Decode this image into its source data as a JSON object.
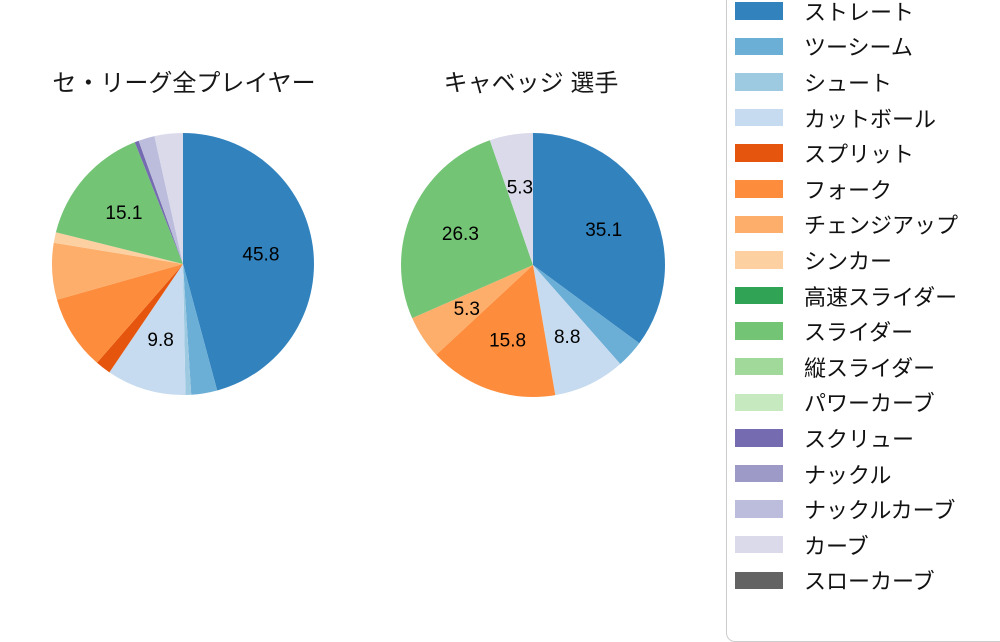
{
  "chart_data": [
    {
      "type": "pie",
      "title": "セ・リーグ全プレイヤー",
      "start_angle": "top",
      "direction": "clockwise",
      "unit": "percent",
      "pct_label_distance": 0.6,
      "slices": [
        {
          "name": "ストレート",
          "value": 45.8,
          "pct_label": "45.8",
          "color": "#3182bd"
        },
        {
          "name": "ツーシーム",
          "value": 3.2,
          "pct_label": null,
          "color": "#6baed6"
        },
        {
          "name": "シュート",
          "value": 0.7,
          "pct_label": null,
          "color": "#9ecae1"
        },
        {
          "name": "カットボール",
          "value": 9.8,
          "pct_label": "9.8",
          "color": "#c6dbef"
        },
        {
          "name": "スプリット",
          "value": 1.9,
          "pct_label": null,
          "color": "#e6550d"
        },
        {
          "name": "フォーク",
          "value": 9.2,
          "pct_label": null,
          "color": "#fd8d3c"
        },
        {
          "name": "チェンジアップ",
          "value": 7.0,
          "pct_label": null,
          "color": "#fdae6b"
        },
        {
          "name": "シンカー",
          "value": 1.3,
          "pct_label": null,
          "color": "#fdd0a2"
        },
        {
          "name": "スライダー",
          "value": 15.1,
          "pct_label": "15.1",
          "color": "#74c476"
        },
        {
          "name": "スクリュー",
          "value": 0.5,
          "pct_label": null,
          "color": "#756bb1"
        },
        {
          "name": "ナックルカーブ",
          "value": 2.0,
          "pct_label": null,
          "color": "#bcbddc"
        },
        {
          "name": "カーブ",
          "value": 3.5,
          "pct_label": null,
          "color": "#dadaeb"
        }
      ]
    },
    {
      "type": "pie",
      "title": "キャベッジ 選手",
      "start_angle": "top",
      "direction": "clockwise",
      "unit": "percent",
      "pct_label_distance": 0.6,
      "slices": [
        {
          "name": "ストレート",
          "value": 35.1,
          "pct_label": "35.1",
          "color": "#3182bd"
        },
        {
          "name": "ツーシーム",
          "value": 3.4,
          "pct_label": null,
          "color": "#6baed6"
        },
        {
          "name": "カットボール",
          "value": 8.8,
          "pct_label": "8.8",
          "color": "#c6dbef"
        },
        {
          "name": "フォーク",
          "value": 15.8,
          "pct_label": "15.8",
          "color": "#fd8d3c"
        },
        {
          "name": "チェンジアップ",
          "value": 5.3,
          "pct_label": "5.3",
          "color": "#fdae6b"
        },
        {
          "name": "スライダー",
          "value": 26.3,
          "pct_label": "26.3",
          "color": "#74c476"
        },
        {
          "name": "カーブ",
          "value": 5.3,
          "pct_label": "5.3",
          "color": "#dadaeb"
        }
      ]
    }
  ],
  "legend": {
    "position": "right",
    "items": [
      {
        "label": "ストレート",
        "color": "#3182bd"
      },
      {
        "label": "ツーシーム",
        "color": "#6baed6"
      },
      {
        "label": "シュート",
        "color": "#9ecae1"
      },
      {
        "label": "カットボール",
        "color": "#c6dbef"
      },
      {
        "label": "スプリット",
        "color": "#e6550d"
      },
      {
        "label": "フォーク",
        "color": "#fd8d3c"
      },
      {
        "label": "チェンジアップ",
        "color": "#fdae6b"
      },
      {
        "label": "シンカー",
        "color": "#fdd0a2"
      },
      {
        "label": "高速スライダー",
        "color": "#31a354"
      },
      {
        "label": "スライダー",
        "color": "#74c476"
      },
      {
        "label": "縦スライダー",
        "color": "#a1d99b"
      },
      {
        "label": "パワーカーブ",
        "color": "#c7e9c0"
      },
      {
        "label": "スクリュー",
        "color": "#756bb1"
      },
      {
        "label": "ナックル",
        "color": "#9e9ac8"
      },
      {
        "label": "ナックルカーブ",
        "color": "#bcbddc"
      },
      {
        "label": "カーブ",
        "color": "#dadaeb"
      },
      {
        "label": "スローカーブ",
        "color": "#636363"
      }
    ]
  }
}
